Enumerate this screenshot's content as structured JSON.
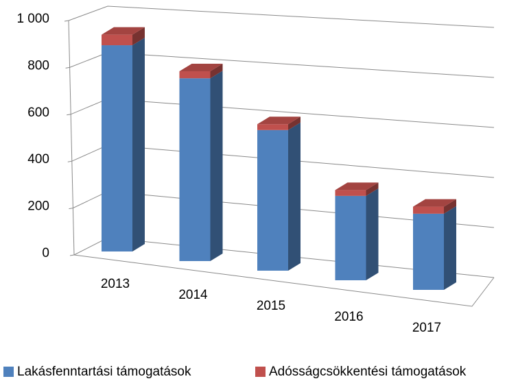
{
  "chart_data": {
    "type": "bar3d_stacked",
    "categories": [
      "2013",
      "2014",
      "2015",
      "2016",
      "2017"
    ],
    "series": [
      {
        "name": "Lakásfenntartási támogatások",
        "color": "#4f81bd",
        "values": [
          880,
          780,
          600,
          360,
          325
        ]
      },
      {
        "name": "Adósságcsökkentési támogatások",
        "color": "#c0504d",
        "values": [
          45,
          30,
          25,
          25,
          30
        ]
      }
    ],
    "ylim": [
      0,
      1000
    ],
    "yticks": [
      0,
      200,
      400,
      600,
      800,
      {
        "value": 1000,
        "label": "1 000"
      }
    ],
    "grid": true,
    "legend": "bottom"
  }
}
